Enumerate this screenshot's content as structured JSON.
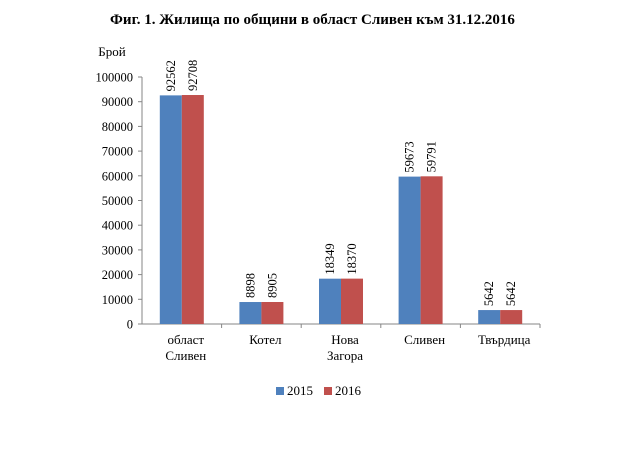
{
  "colors": {
    "s2015": "#4f81bd",
    "s2016": "#c0504d",
    "axis": "#868686"
  },
  "chart_data": {
    "type": "bar",
    "title": "Фиг. 1. Жилища по общини в област Сливен към 31.12.2016",
    "ylabel": "Брой",
    "xlabel": "",
    "ylim": [
      0,
      100000
    ],
    "yticks": [
      0,
      10000,
      20000,
      30000,
      40000,
      50000,
      60000,
      70000,
      80000,
      90000,
      100000
    ],
    "grid": false,
    "legend": "bottom",
    "categories": [
      [
        "област",
        "Сливен"
      ],
      [
        "Котел"
      ],
      [
        "Нова",
        "Загора"
      ],
      [
        "Сливен"
      ],
      [
        "Твърдица"
      ]
    ],
    "series": [
      {
        "name": "2015",
        "values": [
          92562,
          8898,
          18349,
          59673,
          5642
        ]
      },
      {
        "name": "2016",
        "values": [
          92708,
          8905,
          18370,
          59791,
          5642
        ]
      }
    ]
  }
}
